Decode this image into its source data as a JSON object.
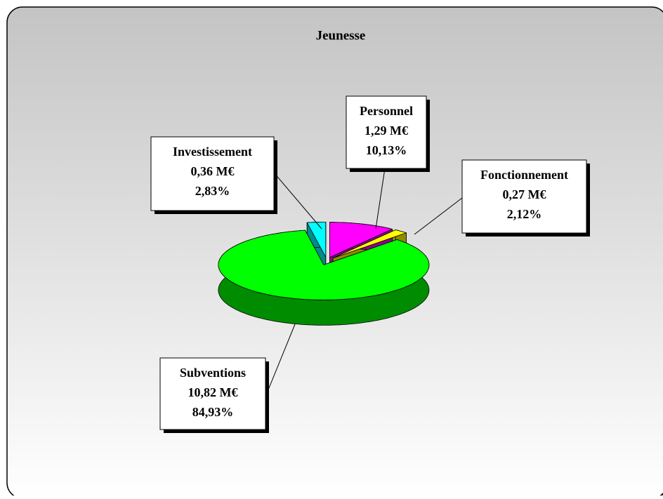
{
  "chart_data": {
    "type": "pie",
    "title": "Jeunesse",
    "categories": [
      "Personnel",
      "Fonctionnement",
      "Subventions",
      "Investissement"
    ],
    "values": [
      10.13,
      2.12,
      84.93,
      2.83
    ],
    "value_labels": [
      "10,13%",
      "2,12%",
      "84,93%",
      "2,83%"
    ],
    "amounts": [
      1.29,
      0.27,
      10.82,
      0.36
    ],
    "amount_labels": [
      "1,29 M€",
      "0,27 M€",
      "10,82 M€",
      "0,36 M€"
    ],
    "colors": [
      "#ff00ff",
      "#ffff00",
      "#00ff00",
      "#00ffff"
    ]
  }
}
